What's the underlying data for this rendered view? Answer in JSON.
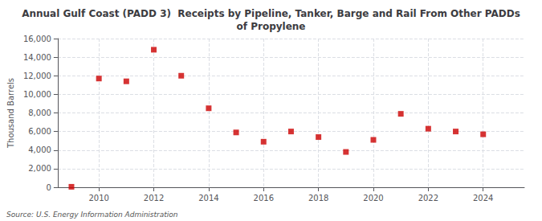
{
  "chart_data": {
    "type": "scatter",
    "title": "Annual Gulf Coast (PADD 3)  Receipts by Pipeline, Tanker, Barge and Rail From Other PADDs\nof Propylene",
    "ylabel": "Thousand Barrels",
    "source": "Source: U.S. Energy Information Administration",
    "x": [
      2009,
      2010,
      2011,
      2012,
      2013,
      2014,
      2015,
      2016,
      2017,
      2018,
      2019,
      2020,
      2021,
      2022,
      2023,
      2024
    ],
    "values": [
      50,
      11700,
      11400,
      14800,
      12000,
      8500,
      5900,
      4900,
      6000,
      5400,
      3800,
      5100,
      7900,
      6300,
      6000,
      5700
    ],
    "color": "#cc0000",
    "marker": "square",
    "xlim": [
      2008.5,
      2025.5
    ],
    "xticks": [
      2010,
      2012,
      2014,
      2016,
      2018,
      2020,
      2022,
      2024
    ],
    "ylim": [
      0,
      16000
    ],
    "yticks": [
      0,
      {
        "value": 2000,
        "label": "2,000"
      },
      {
        "value": 4000,
        "label": "4,000"
      },
      {
        "value": 6000,
        "label": "6,000"
      },
      {
        "value": 8000,
        "label": "8,000"
      },
      {
        "value": 10000,
        "label": "10,000"
      },
      {
        "value": 12000,
        "label": "12,000"
      },
      {
        "value": 14000,
        "label": "14,000"
      },
      {
        "value": 16000,
        "label": "16,000"
      }
    ],
    "grid": true
  }
}
